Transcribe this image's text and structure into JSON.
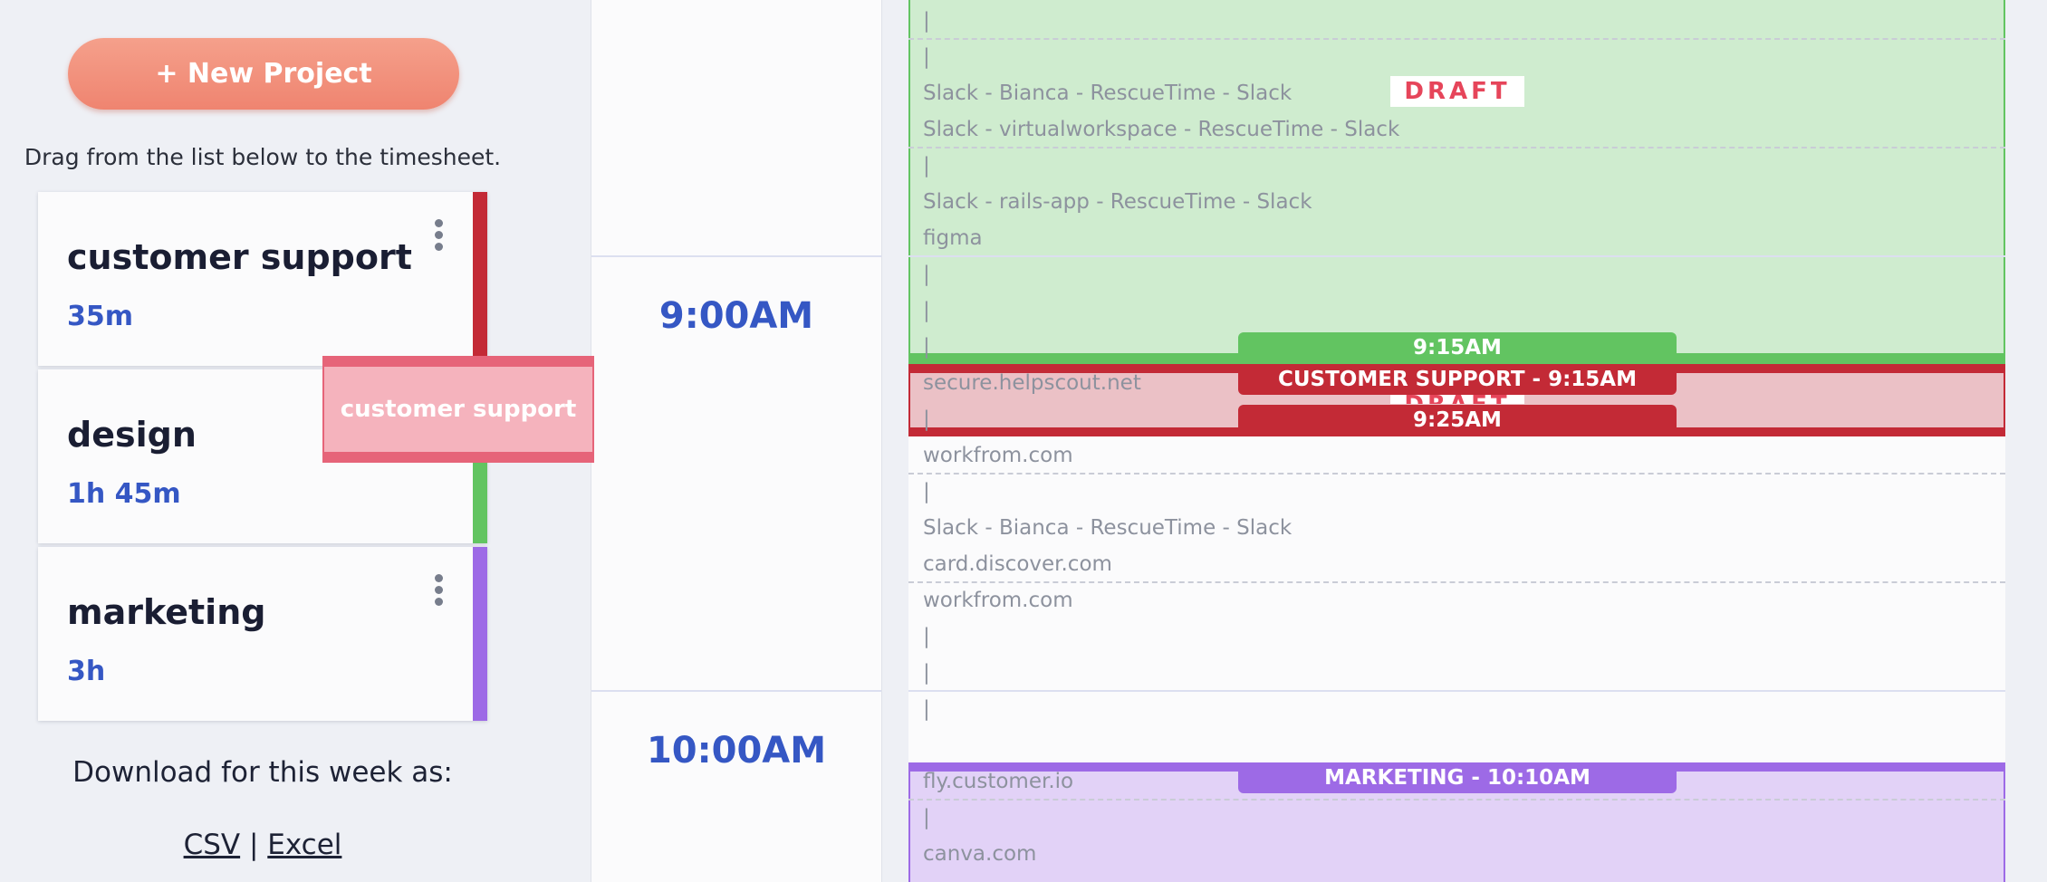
{
  "sidebar": {
    "new_project_label": "+ New Project",
    "drag_hint": "Drag from the list below to the timesheet.",
    "projects": [
      {
        "name": "customer support",
        "time": "35m",
        "color": "#c32a36"
      },
      {
        "name": "design",
        "time": "1h 45m",
        "color": "#62c461"
      },
      {
        "name": "marketing",
        "time": "3h",
        "color": "#9d6ae6"
      }
    ],
    "download_label": "Download for this week as:",
    "download_csv": "CSV",
    "download_sep": "|",
    "download_excel": "Excel"
  },
  "drag_ghost": {
    "label": "customer support"
  },
  "timeline": {
    "hours": [
      "9:00AM",
      "10:00AM"
    ],
    "entries": [
      "|",
      "|",
      "Slack - Bianca - RescueTime - Slack",
      "Slack - virtualworkspace - RescueTime - Slack",
      "|",
      "Slack - rails-app - RescueTime - Slack",
      "figma",
      "|",
      "|",
      "|",
      "secure.helpscout.net",
      "|",
      "workfrom.com",
      "|",
      "Slack - Bianca - RescueTime - Slack",
      "card.discover.com",
      "workfrom.com",
      "|",
      "|",
      "|",
      "fly.customer.io",
      "|",
      "canva.com"
    ],
    "tags": {
      "green_time": "9:15AM",
      "red_title": "CUSTOMER SUPPORT - 9:15AM",
      "red_time": "9:25AM",
      "purple_title": "MARKETING - 10:10AM"
    },
    "draft_label": "DRAFT",
    "colors": {
      "accent": "#3557c4",
      "new_project": "#ef8470"
    }
  }
}
